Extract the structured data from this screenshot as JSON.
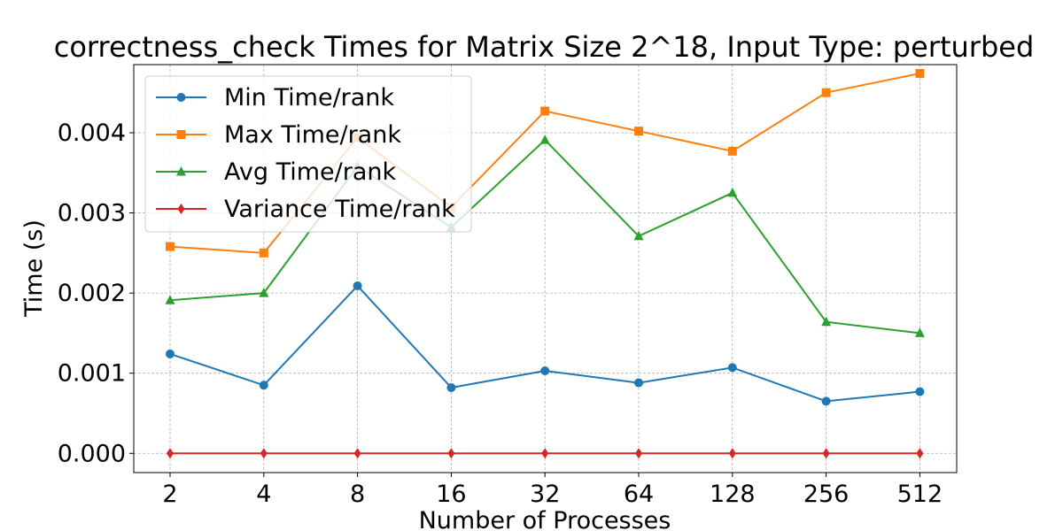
{
  "chart_data": {
    "type": "line",
    "title": "correctness_check Times for Matrix Size 2^18, Input Type: perturbed",
    "xlabel": "Number of Processes",
    "ylabel": "Time (s)",
    "categories": [
      "2",
      "4",
      "8",
      "16",
      "32",
      "64",
      "128",
      "256",
      "512"
    ],
    "ylim": [
      -0.00024,
      0.00485
    ],
    "yticks": [
      "0.000",
      "0.001",
      "0.002",
      "0.003",
      "0.004"
    ],
    "ytick_values": [
      0,
      0.001,
      0.002,
      0.003,
      0.004
    ],
    "grid": true,
    "legend_position": "top-left",
    "series": [
      {
        "name": "Min Time/rank",
        "color": "#1f77b4",
        "marker": "circle",
        "values": [
          0.00124,
          0.00085,
          0.00209,
          0.00082,
          0.00103,
          0.00088,
          0.00107,
          0.00065,
          0.00077
        ]
      },
      {
        "name": "Max Time/rank",
        "color": "#ff7f0e",
        "marker": "square",
        "values": [
          0.00258,
          0.0025,
          0.00394,
          0.00307,
          0.00427,
          0.00402,
          0.00377,
          0.0045,
          0.00474
        ]
      },
      {
        "name": "Avg Time/rank",
        "color": "#2ca02c",
        "marker": "triangle",
        "values": [
          0.00191,
          0.002,
          0.00358,
          0.00282,
          0.00391,
          0.00271,
          0.00325,
          0.00164,
          0.0015
        ]
      },
      {
        "name": "Variance Time/rank",
        "color": "#d62728",
        "marker": "diamond",
        "values": [
          0,
          0,
          0,
          0,
          0,
          0,
          0,
          0,
          0
        ]
      }
    ]
  }
}
